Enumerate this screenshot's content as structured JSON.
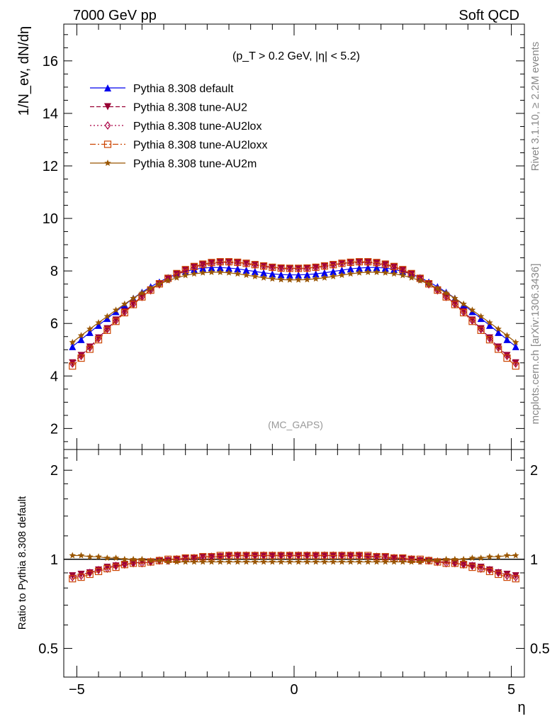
{
  "header": {
    "left": "7000 GeV pp",
    "right": "Soft QCD"
  },
  "side_labels": {
    "rivet": "Rivet 3.1.10, ≥ 2.2M events",
    "mcplots": "mcplots.cern.ch [arXiv:1306.3436]"
  },
  "chart_data": [
    {
      "type": "line",
      "title": "",
      "cut_label": "(p_T > 0.2 GeV, |η| < 5.2)",
      "watermark": "(MC_GAPS)",
      "ylabel": "1/N_ev, dN/dη",
      "xlabel": "",
      "xlim": [
        -5.3,
        5.3
      ],
      "ylim": [
        1.2,
        17.4
      ],
      "yticks": [
        2,
        4,
        6,
        8,
        10,
        12,
        14,
        16
      ],
      "grid": false,
      "legend_position": "top-left",
      "x": [
        -5.1,
        -4.9,
        -4.7,
        -4.5,
        -4.3,
        -4.1,
        -3.9,
        -3.7,
        -3.5,
        -3.3,
        -3.1,
        -2.9,
        -2.7,
        -2.5,
        -2.3,
        -2.1,
        -1.9,
        -1.7,
        -1.5,
        -1.3,
        -1.1,
        -0.9,
        -0.7,
        -0.5,
        -0.3,
        -0.1,
        0.1,
        0.3,
        0.5,
        0.7,
        0.9,
        1.1,
        1.3,
        1.5,
        1.7,
        1.9,
        2.1,
        2.3,
        2.5,
        2.7,
        2.9,
        3.1,
        3.3,
        3.5,
        3.7,
        3.9,
        4.1,
        4.3,
        4.5,
        4.7,
        4.9,
        5.1
      ],
      "series": [
        {
          "name": "Pythia 8.308 default",
          "color": "#0000ee",
          "marker": "triangle-up",
          "dash": "solid",
          "values": [
            5.12,
            5.39,
            5.66,
            5.93,
            6.19,
            6.45,
            6.71,
            6.96,
            7.19,
            7.4,
            7.58,
            7.75,
            7.88,
            7.98,
            8.06,
            8.11,
            8.13,
            8.13,
            8.11,
            8.08,
            8.03,
            7.98,
            7.93,
            7.89,
            7.86,
            7.85,
            7.85,
            7.86,
            7.89,
            7.93,
            7.98,
            8.03,
            8.08,
            8.11,
            8.13,
            8.13,
            8.11,
            8.06,
            7.98,
            7.88,
            7.75,
            7.58,
            7.4,
            7.19,
            6.96,
            6.71,
            6.45,
            6.19,
            5.93,
            5.66,
            5.39,
            5.12
          ]
        },
        {
          "name": "Pythia 8.308 tune-AU2",
          "color": "#990033",
          "marker": "triangle-down",
          "dash": "6,3",
          "values": [
            4.5,
            4.78,
            5.1,
            5.45,
            5.8,
            6.13,
            6.45,
            6.75,
            7.03,
            7.28,
            7.51,
            7.71,
            7.88,
            8.03,
            8.15,
            8.24,
            8.3,
            8.33,
            8.34,
            8.32,
            8.29,
            8.24,
            8.19,
            8.14,
            8.11,
            8.1,
            8.1,
            8.11,
            8.14,
            8.19,
            8.24,
            8.29,
            8.32,
            8.34,
            8.33,
            8.3,
            8.24,
            8.15,
            8.03,
            7.88,
            7.71,
            7.51,
            7.28,
            7.03,
            6.75,
            6.45,
            6.13,
            5.8,
            5.45,
            5.1,
            4.78,
            4.5
          ]
        },
        {
          "name": "Pythia 8.308 tune-AU2lox",
          "color": "#aa0044",
          "marker": "diamond-open",
          "dash": "2,3",
          "values": [
            4.47,
            4.76,
            5.08,
            5.43,
            5.78,
            6.11,
            6.43,
            6.73,
            7.01,
            7.26,
            7.49,
            7.69,
            7.86,
            8.01,
            8.13,
            8.22,
            8.28,
            8.31,
            8.32,
            8.3,
            8.27,
            8.22,
            8.17,
            8.12,
            8.09,
            8.08,
            8.08,
            8.09,
            8.12,
            8.17,
            8.22,
            8.27,
            8.3,
            8.32,
            8.31,
            8.28,
            8.22,
            8.13,
            8.01,
            7.86,
            7.69,
            7.49,
            7.26,
            7.01,
            6.73,
            6.43,
            6.11,
            5.78,
            5.43,
            5.08,
            4.76,
            4.47
          ]
        },
        {
          "name": "Pythia 8.308 tune-AU2loxx",
          "color": "#cc4400",
          "marker": "square-open",
          "dash": "8,3,2,3",
          "values": [
            4.38,
            4.68,
            5.02,
            5.38,
            5.74,
            6.08,
            6.41,
            6.72,
            7.01,
            7.27,
            7.51,
            7.72,
            7.9,
            8.05,
            8.17,
            8.26,
            8.32,
            8.35,
            8.35,
            8.33,
            8.29,
            8.24,
            8.19,
            8.14,
            8.11,
            8.1,
            8.1,
            8.11,
            8.14,
            8.19,
            8.24,
            8.29,
            8.33,
            8.35,
            8.35,
            8.32,
            8.26,
            8.17,
            8.05,
            7.9,
            7.72,
            7.51,
            7.27,
            7.01,
            6.72,
            6.41,
            6.08,
            5.74,
            5.38,
            5.02,
            4.68,
            4.38
          ]
        },
        {
          "name": "Pythia 8.308 tune-AU2m",
          "color": "#995500",
          "marker": "star",
          "dash": "solid",
          "values": [
            5.28,
            5.54,
            5.79,
            6.03,
            6.27,
            6.51,
            6.74,
            6.96,
            7.16,
            7.34,
            7.5,
            7.63,
            7.74,
            7.83,
            7.89,
            7.93,
            7.95,
            7.95,
            7.93,
            7.89,
            7.84,
            7.79,
            7.74,
            7.7,
            7.67,
            7.66,
            7.66,
            7.67,
            7.7,
            7.74,
            7.79,
            7.84,
            7.89,
            7.93,
            7.95,
            7.95,
            7.93,
            7.89,
            7.83,
            7.74,
            7.63,
            7.5,
            7.34,
            7.16,
            6.96,
            6.74,
            6.51,
            6.27,
            6.03,
            5.79,
            5.54,
            5.28
          ]
        }
      ]
    },
    {
      "type": "line",
      "title": "",
      "ylabel": "Ratio to Pythia 8.308 default",
      "xlabel": "η",
      "xlim": [
        -5.3,
        5.3
      ],
      "ylim": [
        0.4,
        2.35
      ],
      "scale": "log",
      "xticks": [
        -5,
        0,
        5
      ],
      "yticks": [
        0.5,
        1,
        2
      ],
      "reference_line": 1,
      "grid": false,
      "x": [
        -5.1,
        -4.9,
        -4.7,
        -4.5,
        -4.3,
        -4.1,
        -3.9,
        -3.7,
        -3.5,
        -3.3,
        -3.1,
        -2.9,
        -2.7,
        -2.5,
        -2.3,
        -2.1,
        -1.9,
        -1.7,
        -1.5,
        -1.3,
        -1.1,
        -0.9,
        -0.7,
        -0.5,
        -0.3,
        -0.1,
        0.1,
        0.3,
        0.5,
        0.7,
        0.9,
        1.1,
        1.3,
        1.5,
        1.7,
        1.9,
        2.1,
        2.3,
        2.5,
        2.7,
        2.9,
        3.1,
        3.3,
        3.5,
        3.7,
        3.9,
        4.1,
        4.3,
        4.5,
        4.7,
        4.9,
        5.1
      ],
      "series": [
        {
          "name": "Pythia 8.308 tune-AU2",
          "color": "#990033",
          "marker": "triangle-down",
          "dash": "6,3",
          "values": [
            0.88,
            0.89,
            0.9,
            0.92,
            0.94,
            0.95,
            0.96,
            0.97,
            0.98,
            0.98,
            0.99,
            0.99,
            1.0,
            1.01,
            1.01,
            1.02,
            1.02,
            1.02,
            1.03,
            1.03,
            1.03,
            1.03,
            1.03,
            1.03,
            1.03,
            1.03,
            1.03,
            1.03,
            1.03,
            1.03,
            1.03,
            1.03,
            1.03,
            1.03,
            1.02,
            1.02,
            1.02,
            1.01,
            1.01,
            1.0,
            0.99,
            0.99,
            0.98,
            0.98,
            0.97,
            0.96,
            0.95,
            0.94,
            0.92,
            0.9,
            0.89,
            0.88
          ]
        },
        {
          "name": "Pythia 8.308 tune-AU2lox",
          "color": "#aa0044",
          "marker": "diamond-open",
          "dash": "2,3",
          "values": [
            0.87,
            0.88,
            0.9,
            0.92,
            0.93,
            0.95,
            0.96,
            0.97,
            0.97,
            0.98,
            0.99,
            0.99,
            1.0,
            1.0,
            1.01,
            1.01,
            1.02,
            1.02,
            1.03,
            1.03,
            1.03,
            1.03,
            1.03,
            1.03,
            1.03,
            1.03,
            1.03,
            1.03,
            1.03,
            1.03,
            1.03,
            1.03,
            1.03,
            1.03,
            1.02,
            1.02,
            1.01,
            1.01,
            1.0,
            1.0,
            0.99,
            0.99,
            0.98,
            0.97,
            0.97,
            0.96,
            0.95,
            0.93,
            0.92,
            0.9,
            0.88,
            0.87
          ]
        },
        {
          "name": "Pythia 8.308 tune-AU2loxx",
          "color": "#cc4400",
          "marker": "square-open",
          "dash": "8,3,2,3",
          "values": [
            0.86,
            0.87,
            0.89,
            0.91,
            0.93,
            0.94,
            0.96,
            0.97,
            0.97,
            0.98,
            0.99,
            1.0,
            1.0,
            1.01,
            1.01,
            1.02,
            1.02,
            1.03,
            1.03,
            1.03,
            1.03,
            1.03,
            1.03,
            1.03,
            1.03,
            1.03,
            1.03,
            1.03,
            1.03,
            1.03,
            1.03,
            1.03,
            1.03,
            1.03,
            1.03,
            1.02,
            1.02,
            1.01,
            1.01,
            1.0,
            1.0,
            0.99,
            0.98,
            0.97,
            0.97,
            0.96,
            0.94,
            0.93,
            0.91,
            0.89,
            0.87,
            0.86
          ]
        },
        {
          "name": "Pythia 8.308 tune-AU2m",
          "color": "#995500",
          "marker": "star",
          "dash": "solid",
          "values": [
            1.03,
            1.03,
            1.02,
            1.02,
            1.01,
            1.01,
            1.0,
            1.0,
            1.0,
            0.99,
            0.99,
            0.98,
            0.98,
            0.98,
            0.98,
            0.98,
            0.98,
            0.98,
            0.98,
            0.98,
            0.98,
            0.98,
            0.98,
            0.98,
            0.98,
            0.98,
            0.98,
            0.98,
            0.98,
            0.98,
            0.98,
            0.98,
            0.98,
            0.98,
            0.98,
            0.98,
            0.98,
            0.98,
            0.98,
            0.98,
            0.98,
            0.99,
            0.99,
            1.0,
            1.0,
            1.0,
            1.01,
            1.01,
            1.02,
            1.02,
            1.03,
            1.03
          ]
        }
      ]
    }
  ]
}
